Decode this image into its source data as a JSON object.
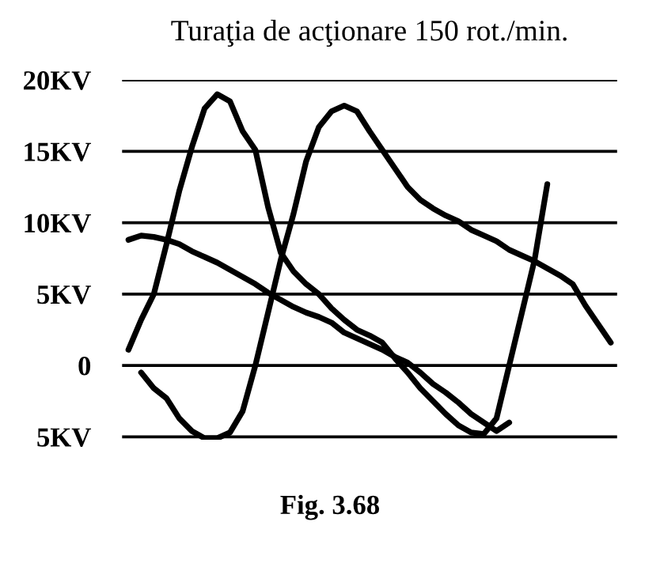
{
  "chart_data": {
    "type": "line",
    "title": "Turaţia de acţionare 150 rot./min.",
    "annotations": [
      "Fig. 3.68"
    ],
    "categories": [
      null,
      null,
      null,
      null,
      null,
      null,
      null,
      null,
      null,
      null,
      null,
      null,
      null,
      null,
      null,
      null,
      null,
      null,
      null,
      null,
      null,
      null,
      null,
      null,
      null,
      null,
      null,
      null,
      null,
      null,
      null,
      null,
      null,
      null,
      null,
      null,
      null,
      null,
      null
    ],
    "series": [
      {
        "color": "#000000",
        "values": [
          1.1,
          3.2,
          5.0,
          8.5,
          12.2,
          15.3,
          18.0,
          19.0,
          18.5,
          16.4,
          15.1,
          11.1,
          7.9,
          6.6,
          5.7,
          5.0,
          4.0,
          3.2,
          2.5,
          2.1,
          1.6,
          0.5,
          -0.5,
          -1.6,
          -2.5,
          -3.4,
          -4.2,
          -4.7,
          -4.8,
          -3.7,
          0,
          3.7,
          7.4,
          12.7,
          null,
          null,
          null,
          null,
          null
        ]
      },
      {
        "color": "#000000",
        "values": [
          null,
          -0.5,
          -1.6,
          -2.3,
          -3.7,
          -4.6,
          -5.1,
          -5.1,
          -4.7,
          -3.2,
          0,
          3.7,
          7.4,
          10.6,
          14.3,
          16.7,
          17.8,
          18.2,
          17.8,
          16.4,
          15.1,
          13.8,
          12.5,
          11.6,
          11.0,
          10.5,
          10.1,
          9.5,
          9.1,
          8.7,
          8.1,
          7.7,
          7.3,
          6.8,
          6.3,
          5.7,
          4.2,
          2.9,
          1.6
        ]
      },
      {
        "color": "#000000",
        "values": [
          8.8,
          9.1,
          9.0,
          8.8,
          8.5,
          8.0,
          7.6,
          7.2,
          6.7,
          6.2,
          5.7,
          5.1,
          4.6,
          4.1,
          3.7,
          3.4,
          3.0,
          2.3,
          1.9,
          1.5,
          1.1,
          0.6,
          0.2,
          -0.5,
          -1.3,
          -1.9,
          -2.6,
          -3.4,
          -4.0,
          -4.6,
          -4.0,
          null,
          null,
          null,
          null,
          null,
          null,
          null,
          null
        ]
      }
    ],
    "ylim": [
      -5.2,
      20
    ],
    "yticks": [
      {
        "value": 20,
        "label": "20KV"
      },
      {
        "value": 15,
        "label": "15KV"
      },
      {
        "value": 10,
        "label": "10KV"
      },
      {
        "value": 5,
        "label": "5KV"
      },
      0,
      {
        "value": -5,
        "label": "5KV"
      }
    ],
    "tick_labels": "y",
    "grid": "y",
    "marker": "none",
    "line_style": "solid"
  }
}
